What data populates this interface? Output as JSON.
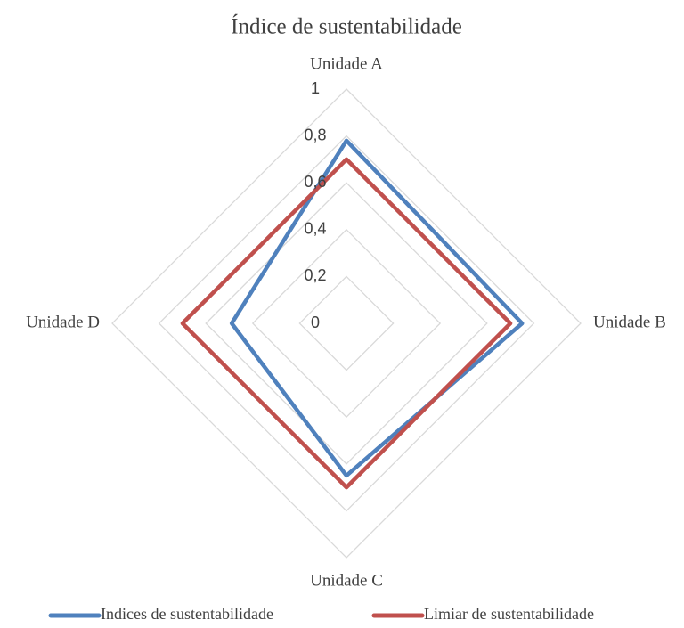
{
  "chart_data": {
    "type": "radar",
    "title": "Índice de sustentabilidade",
    "categories": [
      "Unidade A",
      "Unidade B",
      "Unidade C",
      "Unidade D"
    ],
    "series": [
      {
        "name": "Indices de sustentabilidade",
        "color": "#4f81bd",
        "values": [
          0.78,
          0.75,
          0.65,
          0.49
        ]
      },
      {
        "name": "Limiar de sustentabilidade",
        "color": "#c0504d",
        "values": [
          0.7,
          0.7,
          0.7,
          0.7
        ]
      }
    ],
    "ylim": [
      0,
      1
    ],
    "yticks": [
      0,
      {
        "value": 0.2,
        "label": "0,2"
      },
      {
        "value": 0.4,
        "label": "0,4"
      },
      {
        "value": 0.6,
        "label": "0,6"
      },
      {
        "value": 0.8,
        "label": "0,8"
      },
      1
    ],
    "grid": true,
    "legend": "bottom"
  }
}
